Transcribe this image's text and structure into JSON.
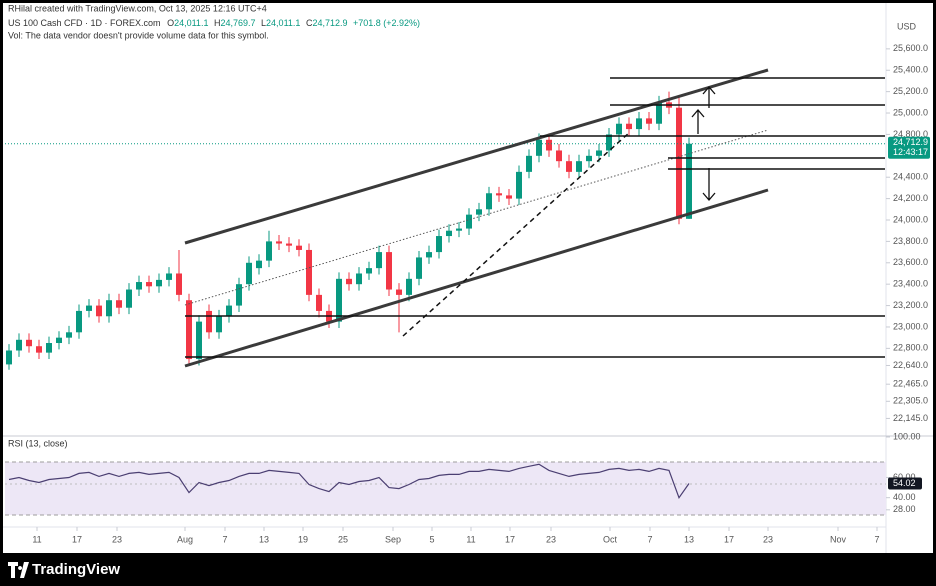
{
  "header": {
    "credit": "RHilal created with TradingView.com, Oct 13, 2025 12:16 UTC+4",
    "symbol": "US 100 Cash CFD · 1D · FOREX.com",
    "ohlc": [
      {
        "key": "O",
        "value": "24,011.1"
      },
      {
        "key": "H",
        "value": "24,769.7"
      },
      {
        "key": "L",
        "value": "24,011.1"
      },
      {
        "key": "C",
        "value": "24,712.9"
      }
    ],
    "change": "+701.8 (+2.92%)",
    "volume_note": "Vol: The data vendor doesn't provide volume data for this symbol."
  },
  "footer": {
    "brand": "TradingView"
  },
  "chart_data": {
    "type": "candlestick",
    "currency": "USD",
    "up_color": "#089981",
    "down_color": "#f23645",
    "open": [
      22650,
      22780,
      22880,
      22820,
      22760,
      22850,
      22900,
      22950,
      23150,
      23200,
      23100,
      23250,
      23180,
      23350,
      23420,
      23380,
      23440,
      23500,
      23250,
      22700,
      23150,
      22950,
      23100,
      23200,
      23400,
      23550,
      23620,
      23800,
      23780,
      23760,
      23720,
      23300,
      23150,
      23050,
      23450,
      23400,
      23500,
      23550,
      23700,
      23350,
      23300,
      23450,
      23650,
      23700,
      23850,
      23900,
      23920,
      24050,
      24100,
      24250,
      24230,
      24200,
      24450,
      24600,
      24750,
      24650,
      24550,
      24450,
      24550,
      24600,
      24650,
      24800,
      24900,
      24850,
      24950,
      24900,
      25100,
      25050,
      24011.1
    ],
    "high": [
      22840,
      22940,
      22940,
      22880,
      22910,
      22960,
      23010,
      23210,
      23260,
      23260,
      23310,
      23310,
      23410,
      23480,
      23480,
      23500,
      23560,
      23720,
      23310,
      23110,
      23210,
      23160,
      23260,
      23460,
      23660,
      23680,
      23900,
      23860,
      23840,
      23820,
      23780,
      23360,
      23210,
      23510,
      23510,
      23560,
      23610,
      23760,
      23760,
      23410,
      23510,
      23710,
      23760,
      23910,
      23960,
      23980,
      24110,
      24160,
      24310,
      24310,
      24290,
      24510,
      24660,
      24810,
      24810,
      24710,
      24610,
      24610,
      24660,
      24710,
      24860,
      24960,
      24960,
      25010,
      25010,
      25160,
      25200,
      25150,
      24769.7
    ],
    "low": [
      22600,
      22720,
      22760,
      22700,
      22700,
      22790,
      22840,
      22890,
      23090,
      23040,
      23040,
      23120,
      23120,
      23290,
      23320,
      23320,
      23380,
      23240,
      22650,
      22640,
      22890,
      22890,
      23040,
      23140,
      23340,
      23490,
      23560,
      23720,
      23700,
      23660,
      23240,
      23090,
      22990,
      22990,
      23340,
      23340,
      23440,
      23490,
      23290,
      22950,
      23240,
      23390,
      23590,
      23640,
      23790,
      23840,
      23860,
      23990,
      24040,
      24170,
      24140,
      24140,
      24390,
      24540,
      24590,
      24490,
      24390,
      24390,
      24490,
      24540,
      24590,
      24740,
      24790,
      24790,
      24840,
      24840,
      24990,
      23960,
      24011.1
    ],
    "close": [
      22780,
      22880,
      22820,
      22760,
      22850,
      22900,
      22950,
      23150,
      23200,
      23100,
      23250,
      23180,
      23350,
      23420,
      23380,
      23440,
      23500,
      23300,
      22700,
      23050,
      22950,
      23100,
      23200,
      23400,
      23600,
      23620,
      23800,
      23780,
      23760,
      23720,
      23300,
      23150,
      23050,
      23450,
      23400,
      23500,
      23550,
      23700,
      23350,
      23300,
      23450,
      23650,
      23700,
      23850,
      23900,
      23920,
      24050,
      24100,
      24250,
      24230,
      24200,
      24450,
      24600,
      24750,
      24650,
      24550,
      24450,
      24550,
      24600,
      24650,
      24800,
      24900,
      24850,
      24950,
      24900,
      25100,
      25050,
      24011.1,
      24712.9
    ],
    "last_price_label": "24,712.9",
    "countdown": "12:43:17",
    "ylim": [
      21990,
      26010
    ],
    "yticks": [
      {
        "value": 25600,
        "label": "25,600.0"
      },
      {
        "value": 25400,
        "label": "25,400.0"
      },
      {
        "value": 25200,
        "label": "25,200.0"
      },
      {
        "value": 25000,
        "label": "25,000.0"
      },
      {
        "value": 24800,
        "label": "24,800.0"
      },
      {
        "value": 24400,
        "label": "24,400.0"
      },
      {
        "value": 24200,
        "label": "24,200.0"
      },
      {
        "value": 24000,
        "label": "24,000.0"
      },
      {
        "value": 23800,
        "label": "23,800.0"
      },
      {
        "value": 23600,
        "label": "23,600.0"
      },
      {
        "value": 23400,
        "label": "23,400.0"
      },
      {
        "value": 23200,
        "label": "23,200.0"
      },
      {
        "value": 23000,
        "label": "23,000.0"
      },
      {
        "value": 22800,
        "label": "22,800.0"
      },
      {
        "value": 22640,
        "label": "22,640.0"
      },
      {
        "value": 22465,
        "label": "22,465.0"
      },
      {
        "value": 22305,
        "label": "22,305.0"
      },
      {
        "value": 22145,
        "label": "22,145.0"
      }
    ],
    "xlim": [
      -0.4,
      87.6
    ],
    "xticks": [
      {
        "value": 2.8,
        "label": "11"
      },
      {
        "value": 6.8,
        "label": "17"
      },
      {
        "value": 10.8,
        "label": "23"
      },
      {
        "value": 17.6,
        "label": "Aug"
      },
      {
        "value": 21.6,
        "label": "7"
      },
      {
        "value": 25.5,
        "label": "13"
      },
      {
        "value": 29.4,
        "label": "19"
      },
      {
        "value": 33.4,
        "label": "25"
      },
      {
        "value": 38.4,
        "label": "Sep"
      },
      {
        "value": 42.3,
        "label": "5"
      },
      {
        "value": 46.2,
        "label": "11"
      },
      {
        "value": 50.1,
        "label": "17"
      },
      {
        "value": 54.2,
        "label": "23"
      },
      {
        "value": 60.1,
        "label": "Oct"
      },
      {
        "value": 64.1,
        "label": "7"
      },
      {
        "value": 68,
        "label": "13"
      },
      {
        "value": 72,
        "label": "17"
      },
      {
        "value": 75.9,
        "label": "23"
      },
      {
        "value": 82.9,
        "label": "Nov"
      },
      {
        "value": 86.8,
        "label": "7"
      }
    ],
    "rsi": {
      "title": "RSI (13, close)",
      "color": "#4b3f72",
      "values": [
        58,
        60,
        57,
        55,
        58,
        59,
        60,
        64,
        65,
        61,
        64,
        61,
        64,
        65,
        63,
        64,
        65,
        60,
        45,
        55,
        52,
        55,
        57,
        61,
        64,
        64,
        67,
        66,
        65,
        64,
        53,
        49,
        46,
        55,
        53,
        56,
        57,
        60,
        50,
        49,
        53,
        58,
        59,
        62,
        63,
        63,
        66,
        66,
        68,
        67,
        66,
        69,
        71,
        73,
        67,
        64,
        61,
        63,
        64,
        65,
        68,
        69,
        67,
        68,
        66,
        69,
        67,
        40,
        54.02
      ],
      "ylim": [
        12,
        101
      ],
      "yticks": [
        {
          "value": 100,
          "label": "100.00"
        },
        {
          "value": 60,
          "label": "60.00"
        },
        {
          "value": 40,
          "label": "40.00"
        },
        {
          "value": 28,
          "label": "28.00"
        }
      ]
    }
  }
}
